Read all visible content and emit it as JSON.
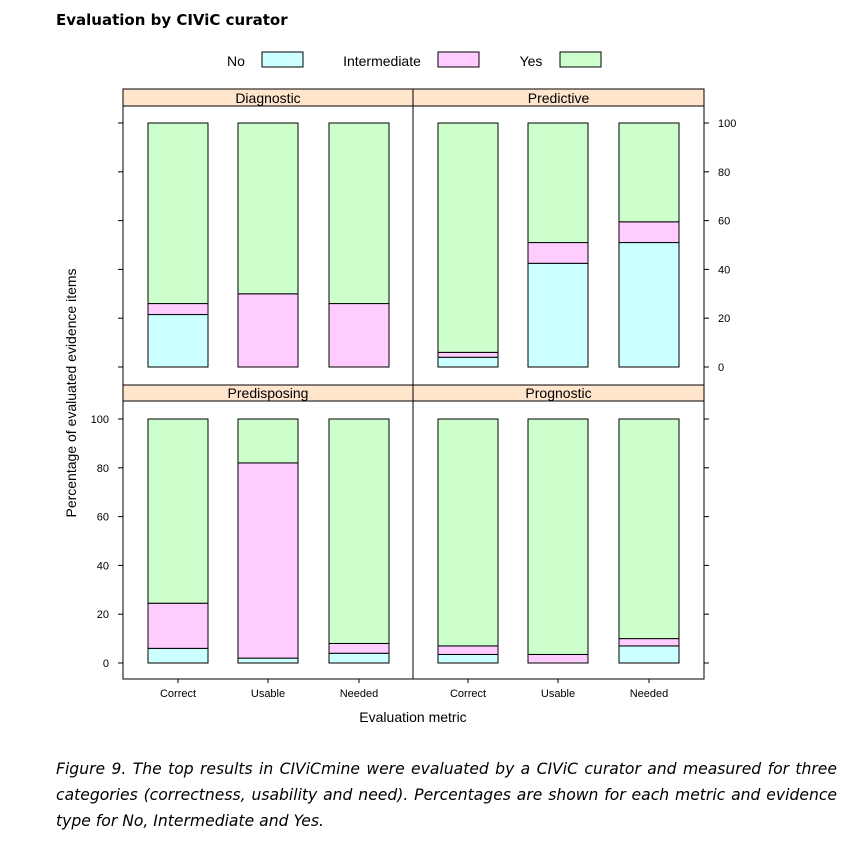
{
  "page": {
    "title": "Evaluation by CIViC curator",
    "caption": "Figure 9. The top results in CIViCmine were evaluated by a CIViC curator and measured for three categories (correctness, usability and need). Percentages are shown for each metric and evidence type for No, Intermediate and Yes."
  },
  "colors": {
    "No": "#ccffff",
    "Intermediate": "#ffccff",
    "Yes": "#ccffcc",
    "strip": "#ffe5cc"
  },
  "chart_data": {
    "type": "bar",
    "stacked": true,
    "title": "",
    "xlabel": "Evaluation metric",
    "ylabel": "Percentage of evaluated evidence items",
    "ylim": [
      0,
      100
    ],
    "yticks": [
      0,
      20,
      40,
      60,
      80,
      100
    ],
    "categories": [
      "Correct",
      "Usable",
      "Needed"
    ],
    "legend": {
      "position": "top",
      "entries": [
        "No",
        "Intermediate",
        "Yes"
      ]
    },
    "panels": [
      {
        "name": "Diagnostic",
        "series": [
          {
            "name": "No",
            "values": [
              21.5,
              0,
              0
            ]
          },
          {
            "name": "Intermediate",
            "values": [
              4.5,
              30,
              26
            ]
          },
          {
            "name": "Yes",
            "values": [
              74,
              70,
              74
            ]
          }
        ]
      },
      {
        "name": "Predictive",
        "series": [
          {
            "name": "No",
            "values": [
              4,
              42.5,
              51
            ]
          },
          {
            "name": "Intermediate",
            "values": [
              2,
              8.5,
              8.5
            ]
          },
          {
            "name": "Yes",
            "values": [
              94,
              49,
              40.5
            ]
          }
        ]
      },
      {
        "name": "Predisposing",
        "series": [
          {
            "name": "No",
            "values": [
              6,
              2,
              4
            ]
          },
          {
            "name": "Intermediate",
            "values": [
              18.5,
              80,
              4
            ]
          },
          {
            "name": "Yes",
            "values": [
              75.5,
              18,
              92
            ]
          }
        ]
      },
      {
        "name": "Prognostic",
        "series": [
          {
            "name": "No",
            "values": [
              3.5,
              0,
              7
            ]
          },
          {
            "name": "Intermediate",
            "values": [
              3.5,
              3.5,
              3
            ]
          },
          {
            "name": "Yes",
            "values": [
              93,
              96.5,
              90
            ]
          }
        ]
      }
    ]
  }
}
